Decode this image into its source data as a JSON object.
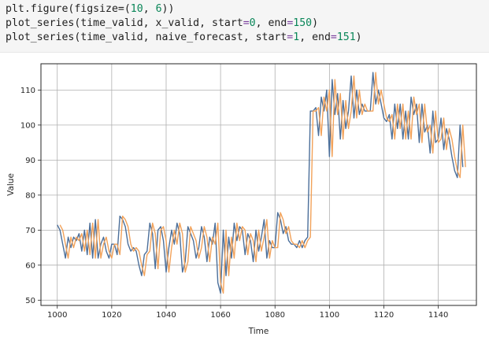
{
  "code": {
    "lines": [
      [
        {
          "t": "plt.figure(figsize=(",
          "c": ""
        },
        {
          "t": "10",
          "c": "num"
        },
        {
          "t": ", ",
          "c": ""
        },
        {
          "t": "6",
          "c": "num"
        },
        {
          "t": "))",
          "c": ""
        }
      ],
      [
        {
          "t": "plot_series(time_valid, x_valid, start",
          "c": ""
        },
        {
          "t": "=",
          "c": "op"
        },
        {
          "t": "0",
          "c": "num"
        },
        {
          "t": ", end",
          "c": ""
        },
        {
          "t": "=",
          "c": "op"
        },
        {
          "t": "150",
          "c": "num"
        },
        {
          "t": ")",
          "c": ""
        }
      ],
      [
        {
          "t": "plot_series(time_valid, naive_forecast, start",
          "c": ""
        },
        {
          "t": "=",
          "c": "op"
        },
        {
          "t": "1",
          "c": "num"
        },
        {
          "t": ", end",
          "c": ""
        },
        {
          "t": "=",
          "c": "op"
        },
        {
          "t": "151",
          "c": "num"
        },
        {
          "t": ")",
          "c": ""
        }
      ]
    ]
  },
  "chart_data": {
    "type": "line",
    "title": "",
    "xlabel": "Time",
    "ylabel": "Value",
    "xlim": [
      994,
      1154
    ],
    "ylim": [
      48.5,
      117.5
    ],
    "xticks": [
      1000,
      1020,
      1040,
      1060,
      1080,
      1100,
      1120,
      1140
    ],
    "yticks": [
      50,
      60,
      70,
      80,
      90,
      100,
      110
    ],
    "grid": true,
    "series": [
      {
        "color": "#4c6f9a",
        "x_start": 1000,
        "values": [
          71.5,
          70,
          66,
          62,
          68,
          65,
          68,
          67,
          69,
          64,
          70,
          63,
          72,
          62,
          73,
          62,
          66,
          68,
          64,
          62,
          66,
          66,
          63,
          74,
          73,
          71,
          66,
          64,
          65,
          64,
          60,
          57,
          63,
          64,
          72,
          69,
          59,
          70,
          71,
          67,
          58,
          65,
          70,
          66,
          72,
          69,
          58,
          61,
          71,
          69,
          67,
          62,
          65,
          71,
          68,
          61,
          68,
          66,
          72,
          55,
          52,
          70,
          57,
          68,
          62,
          72,
          67,
          71,
          70,
          63,
          69,
          67,
          61,
          70,
          64,
          68,
          73,
          62,
          67,
          65,
          65,
          75,
          73,
          69,
          71,
          67,
          66,
          66,
          65,
          67,
          65,
          67,
          68,
          104,
          104,
          105,
          97,
          108,
          104,
          110,
          91,
          113,
          103,
          109,
          96,
          107,
          99,
          104,
          114,
          102,
          110,
          103,
          106,
          104,
          104,
          104,
          115,
          106,
          110,
          106,
          102,
          101,
          103,
          96,
          106,
          99,
          106,
          96,
          104,
          96,
          108,
          103,
          106,
          95,
          106,
          98,
          100,
          92,
          104,
          95,
          96,
          102,
          93,
          99,
          96,
          91,
          87,
          85,
          100,
          88
        ]
      },
      {
        "color": "#f2a25a",
        "x_start": 1001,
        "values": [
          71.5,
          70,
          66,
          62,
          68,
          65,
          68,
          67,
          69,
          64,
          70,
          63,
          72,
          62,
          73,
          62,
          66,
          68,
          64,
          62,
          66,
          66,
          63,
          74,
          73,
          71,
          66,
          64,
          65,
          64,
          60,
          57,
          63,
          64,
          72,
          69,
          59,
          70,
          71,
          67,
          58,
          65,
          70,
          66,
          72,
          69,
          58,
          61,
          71,
          69,
          67,
          62,
          65,
          71,
          68,
          61,
          68,
          66,
          72,
          55,
          52,
          70,
          57,
          68,
          62,
          72,
          67,
          71,
          70,
          63,
          69,
          67,
          61,
          70,
          64,
          68,
          73,
          62,
          67,
          65,
          65,
          75,
          73,
          69,
          71,
          67,
          66,
          66,
          65,
          67,
          65,
          67,
          68,
          104,
          104,
          105,
          97,
          108,
          104,
          110,
          91,
          113,
          103,
          109,
          96,
          107,
          99,
          104,
          114,
          102,
          110,
          103,
          106,
          104,
          104,
          104,
          115,
          106,
          110,
          106,
          102,
          101,
          103,
          96,
          106,
          99,
          106,
          96,
          104,
          96,
          108,
          103,
          106,
          95,
          106,
          98,
          100,
          92,
          104,
          95,
          96,
          102,
          93,
          99,
          96,
          91,
          87,
          85,
          100,
          88
        ]
      }
    ]
  }
}
